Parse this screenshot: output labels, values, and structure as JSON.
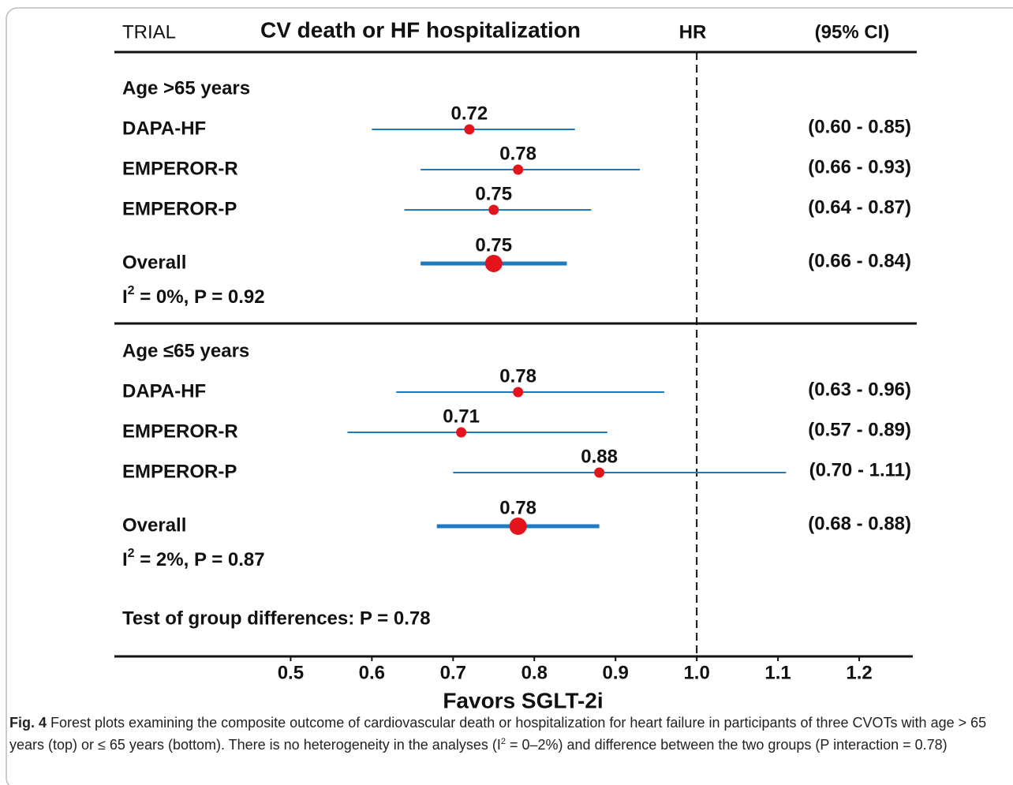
{
  "chart_data": {
    "type": "forest",
    "header": {
      "trial": "TRIAL",
      "title": "CV death or HF hospitalization",
      "hr": "HR",
      "ci": "(95% CI)"
    },
    "groups": [
      {
        "name": "Age >65 years",
        "studies": [
          {
            "name": "DAPA-HF",
            "hr": 0.72,
            "lo": 0.6,
            "hi": 0.85,
            "ci_label": "(0.60 - 0.85)"
          },
          {
            "name": "EMPEROR-R",
            "hr": 0.78,
            "lo": 0.66,
            "hi": 0.93,
            "ci_label": "(0.66 - 0.93)"
          },
          {
            "name": "EMPEROR-P",
            "hr": 0.75,
            "lo": 0.64,
            "hi": 0.87,
            "ci_label": "(0.64 - 0.87)"
          }
        ],
        "overall": {
          "name": "Overall",
          "hr": 0.75,
          "lo": 0.66,
          "hi": 0.84,
          "ci_label": "(0.66 - 0.84)"
        },
        "heterogeneity": {
          "base": "I",
          "sup": "2",
          "rest": " = 0%, P = 0.92"
        }
      },
      {
        "name": "Age ≤65 years",
        "studies": [
          {
            "name": "DAPA-HF",
            "hr": 0.78,
            "lo": 0.63,
            "hi": 0.96,
            "ci_label": "(0.63 - 0.96)"
          },
          {
            "name": "EMPEROR-R",
            "hr": 0.71,
            "lo": 0.57,
            "hi": 0.89,
            "ci_label": "(0.57 - 0.89)"
          },
          {
            "name": "EMPEROR-P",
            "hr": 0.88,
            "lo": 0.7,
            "hi": 1.11,
            "ci_label": "(0.70 - 1.11)"
          }
        ],
        "overall": {
          "name": "Overall",
          "hr": 0.78,
          "lo": 0.68,
          "hi": 0.88,
          "ci_label": "(0.68 - 0.88)"
        },
        "heterogeneity": {
          "base": "I",
          "sup": "2",
          "rest": " = 2%, P = 0.87"
        }
      }
    ],
    "test": "Test of group differences: P = 0.78",
    "xlabel": "Favors SGLT-2i",
    "xlim": [
      0.283,
      1.266
    ],
    "xticks": [
      0.5,
      0.6,
      0.7,
      0.8,
      0.9,
      {
        "value": 1,
        "label": "1.0"
      },
      1.1,
      1.2
    ],
    "refline": 1,
    "line_color": "#1f7bc0",
    "point_color": "#e3141b"
  },
  "caption": {
    "label": "Fig. 4",
    "parts": [
      " Forest plots examining the composite outcome of cardiovascular death or hospitalization for heart failure in participants of three CVOTs with age > 65 years (top) or ≤ 65 years (bottom). There is no heterogeneity in the analyses (I",
      "2",
      " = 0–2%) and difference between the two groups (P interaction = 0.78)"
    ]
  }
}
